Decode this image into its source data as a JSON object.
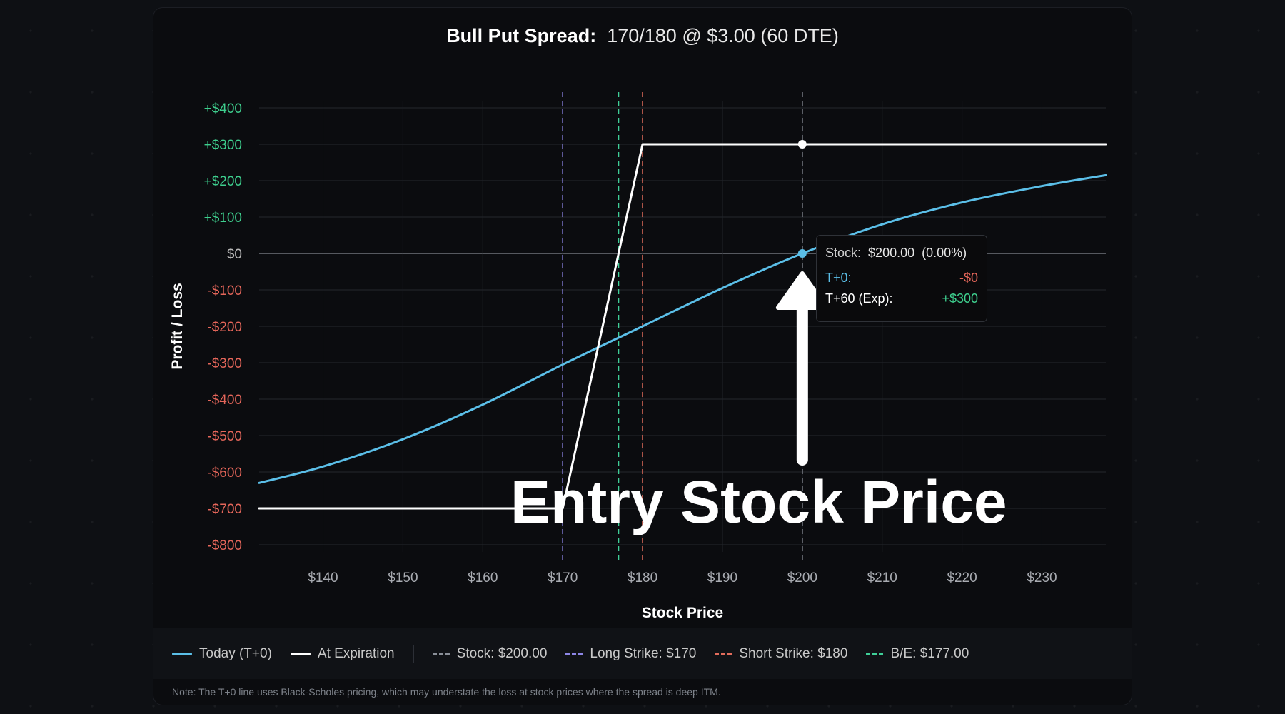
{
  "chart_data": {
    "type": "line",
    "title_bold": "Bull Put Spread:",
    "title_rest": "170/180 @ $3.00 (60 DTE)",
    "xlabel": "Stock Price",
    "ylabel": "Profit / Loss",
    "xlim": [
      132,
      238
    ],
    "ylim": [
      -800,
      400
    ],
    "x_ticks": [
      140,
      150,
      160,
      170,
      180,
      190,
      200,
      210,
      220,
      230
    ],
    "x_tick_labels": [
      "$140",
      "$150",
      "$160",
      "$170",
      "$180",
      "$190",
      "$200",
      "$210",
      "$220",
      "$230"
    ],
    "y_ticks": [
      400,
      300,
      200,
      100,
      0,
      -100,
      -200,
      -300,
      -400,
      -500,
      -600,
      -700,
      -800
    ],
    "y_tick_labels": [
      "+$400",
      "+$300",
      "+$200",
      "+$100",
      "$0",
      "-$100",
      "-$200",
      "-$300",
      "-$400",
      "-$500",
      "-$600",
      "-$700",
      "-$800"
    ],
    "grid": true,
    "series": [
      {
        "name": "Today (T+0)",
        "color": "#5bbfe8",
        "x": [
          132,
          140,
          150,
          160,
          170,
          180,
          190,
          200,
          210,
          220,
          230,
          238
        ],
        "y": [
          -630,
          -585,
          -510,
          -415,
          -305,
          -200,
          -95,
          0,
          80,
          140,
          185,
          215
        ]
      },
      {
        "name": "At Expiration",
        "color": "#ffffff",
        "x": [
          132,
          170,
          180,
          238
        ],
        "y": [
          -700,
          -700,
          300,
          300
        ]
      }
    ],
    "vlines": [
      {
        "name": "Stock: $200.00",
        "x": 200,
        "color": "#8a8f98"
      },
      {
        "name": "Long Strike: $170",
        "x": 170,
        "color": "#8d86e6"
      },
      {
        "name": "Short Strike: $180",
        "x": 180,
        "color": "#e36c5c"
      },
      {
        "name": "B/E: $177.00",
        "x": 177,
        "color": "#3fcf98"
      }
    ],
    "legend_placement": "bottom",
    "colors": {
      "positive": "#3ecf8e",
      "negative": "#e5665a",
      "zero": "#b8b8b8"
    }
  },
  "tooltip": {
    "stock_label": "Stock:",
    "stock_value": "$200.00",
    "stock_change": "(0.00%)",
    "t0_label": "T+0:",
    "t0_value": "-$0",
    "exp_label": "T+60 (Exp):",
    "exp_value": "+$300"
  },
  "legend": {
    "today": "Today (T+0)",
    "expiration": "At Expiration",
    "stock": "Stock: $200.00",
    "long": "Long Strike: $170",
    "short": "Short Strike: $180",
    "be": "B/E: $177.00"
  },
  "note": "Note: The T+0 line uses Black-Scholes pricing, which may understate the loss at stock prices where the spread is deep ITM.",
  "annotation": "Entry Stock Price"
}
